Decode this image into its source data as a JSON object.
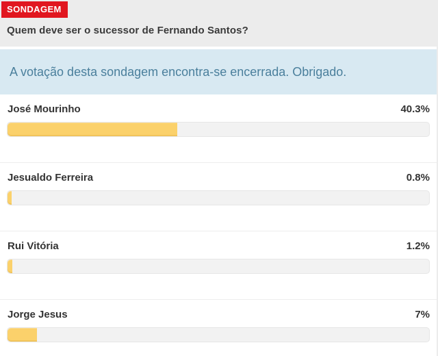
{
  "header": {
    "badge": "SONDAGEM",
    "question": "Quem deve ser o sucessor de Fernando Santos?"
  },
  "notice": {
    "message": "A votação desta sondagem encontra-se encerrada. Obrigado."
  },
  "poll": {
    "options": [
      {
        "label": "José Mourinho",
        "percent": 40.3,
        "percent_label": "40.3%"
      },
      {
        "label": "Jesualdo Ferreira",
        "percent": 0.8,
        "percent_label": "0.8%"
      },
      {
        "label": "Rui Vitória",
        "percent": 1.2,
        "percent_label": "1.2%"
      },
      {
        "label": "Jorge Jesus",
        "percent": 7,
        "percent_label": "7%"
      }
    ]
  },
  "chart_data": {
    "type": "bar",
    "title": "Quem deve ser o sucessor de Fernando Santos?",
    "categories": [
      "José Mourinho",
      "Jesualdo Ferreira",
      "Rui Vitória",
      "Jorge Jesus"
    ],
    "values": [
      40.3,
      0.8,
      1.2,
      7
    ],
    "unit": "%",
    "xlim": [
      0,
      100
    ],
    "orientation": "horizontal"
  },
  "colors": {
    "badge_red": "#e1161f",
    "header_bg": "#ececec",
    "notice_bg": "#d8e9f2",
    "notice_text": "#4a7f9c",
    "bar_fill": "#fbd16b",
    "bar_track": "#f2f2f2",
    "text_dark": "#333333"
  }
}
